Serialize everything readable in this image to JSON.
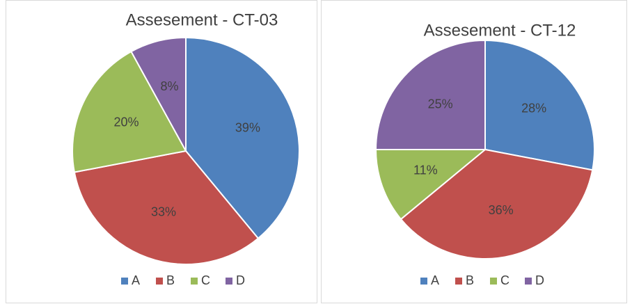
{
  "chart_data": [
    {
      "type": "pie",
      "title": "Assesement - CT-03",
      "categories": [
        "A",
        "B",
        "C",
        "D"
      ],
      "values": [
        39,
        33,
        20,
        8
      ],
      "value_labels": [
        "39%",
        "33%",
        "20%",
        "8%"
      ],
      "colors": [
        "#4f81bd",
        "#c0504d",
        "#9bbb59",
        "#8064a2"
      ],
      "legend": "bottom"
    },
    {
      "type": "pie",
      "title": "Assesement - CT-12",
      "categories": [
        "A",
        "B",
        "C",
        "D"
      ],
      "values": [
        28,
        36,
        11,
        25
      ],
      "value_labels": [
        "28%",
        "36%",
        "11%",
        "25%"
      ],
      "colors": [
        "#4f81bd",
        "#c0504d",
        "#9bbb59",
        "#8064a2"
      ],
      "legend": "bottom"
    }
  ]
}
